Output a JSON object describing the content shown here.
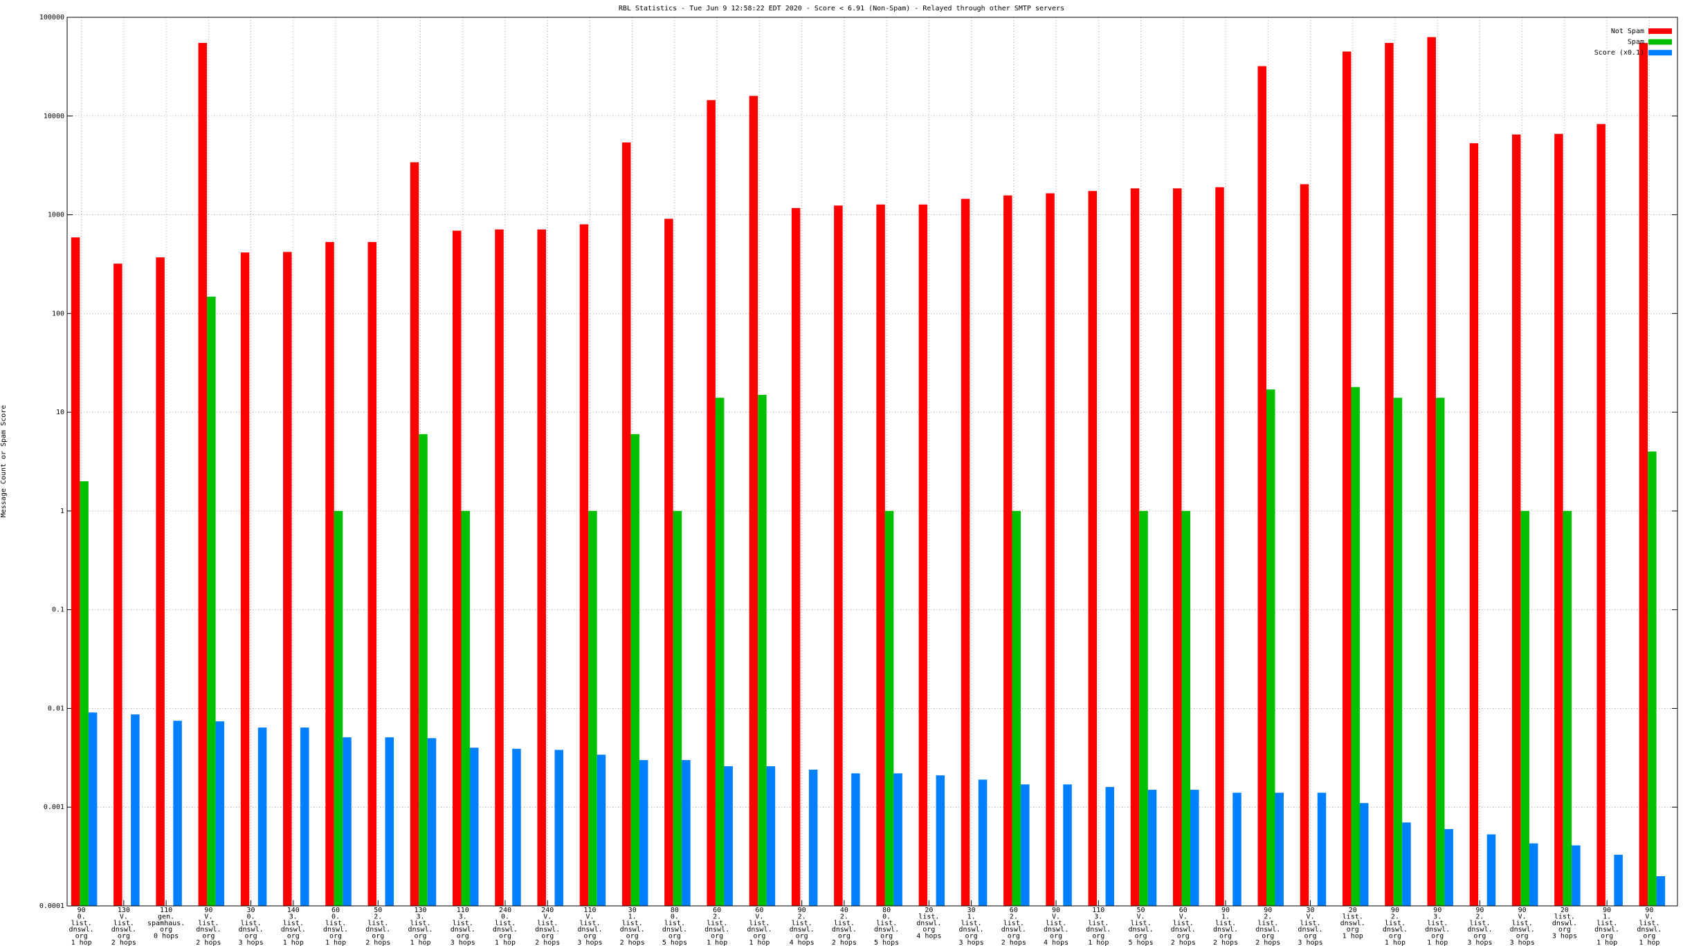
{
  "chart_data": {
    "type": "bar",
    "title": "RBL Statistics - Tue Jun  9 12:58:22 EDT 2020 - Score < 6.91 (Non-Spam) - Relayed through other SMTP servers",
    "y_label": "Message Count or Spam Score",
    "log_scale": true,
    "grid": true,
    "legend": "top-right",
    "ylim": [
      0.0001,
      100000
    ],
    "yticks": [
      0.0001,
      0.001,
      0.01,
      0.1,
      1,
      10,
      100,
      1000,
      10000,
      100000
    ],
    "categories": [
      "90\n0.\nlist.\ndnswl.\norg\n1 hop",
      "130\nV.\nlist.\ndnswl.\norg\n2 hops",
      "110\ngen.\nspamhaus.\norg\n0 hops",
      "90\nV.\nlist.\ndnswl.\norg\n2 hops",
      "30\n0.\nlist.\ndnswl.\norg\n3 hops",
      "140\n3.\nlist.\ndnswl.\norg\n1 hop",
      "60\n0.\nlist.\ndnswl.\norg\n1 hop",
      "50\n2.\nlist.\ndnswl.\norg\n2 hops",
      "130\n3.\nlist.\ndnswl.\norg\n1 hop",
      "110\n3.\nlist.\ndnswl.\norg\n3 hops",
      "240\n0.\nlist.\ndnswl.\norg\n1 hop",
      "240\nV.\nlist.\ndnswl.\norg\n2 hops",
      "110\nV.\nlist.\ndnswl.\norg\n3 hops",
      "30\n1.\nlist.\ndnswl.\norg\n2 hops",
      "80\n0.\nlist.\ndnswl.\norg\n5 hops",
      "60\n2.\nlist.\ndnswl.\norg\n1 hop",
      "60\nV.\nlist.\ndnswl.\norg\n1 hop",
      "90\n2.\nlist.\ndnswl.\norg\n4 hops",
      "40\n2.\nlist.\ndnswl.\norg\n2 hops",
      "80\n0.\nlist.\ndnswl.\norg\n5 hops",
      "20\nlist.\ndnswl.\norg\n4 hops",
      "30\n1.\nlist.\ndnswl.\norg\n3 hops",
      "60\n2.\nlist.\ndnswl.\norg\n2 hops",
      "90\nV.\nlist.\ndnswl.\norg\n4 hops",
      "110\n3.\nlist.\ndnswl.\norg\n1 hop",
      "50\nV.\nlist.\ndnswl.\norg\n5 hops",
      "60\nV.\nlist.\ndnswl.\norg\n2 hops",
      "90\n1.\nlist.\ndnswl.\norg\n2 hops",
      "90\n2.\nlist.\ndnswl.\norg\n2 hops",
      "30\nV.\nlist.\ndnswl.\norg\n3 hops",
      "20\nlist.\ndnswl.\norg\n1 hop",
      "90\n2.\nlist.\ndnswl.\norg\n1 hop",
      "90\n3.\nlist.\ndnswl.\norg\n1 hop",
      "90\n2.\nlist.\ndnswl.\norg\n3 hops",
      "90\nV.\nlist.\ndnswl.\norg\n3 hops",
      "20\nlist.\ndnswl.\norg\n3 hops",
      "90\n1.\nlist.\ndnswl.\norg\n1 hop",
      "90\nV.\nlist.\ndnswl.\norg\n1 hop"
    ],
    "series": [
      {
        "name": "Not Spam",
        "color": "#ff0000",
        "values": [
          590,
          320,
          370,
          55000,
          415,
          420,
          530,
          530,
          3400,
          690,
          710,
          710,
          800,
          5400,
          910,
          14500,
          16000,
          1170,
          1240,
          1270,
          1270,
          1450,
          1570,
          1650,
          1740,
          1850,
          1850,
          1900,
          32000,
          2040,
          45000,
          55000,
          63000,
          5300,
          6500,
          6600,
          8300,
          55000
        ]
      },
      {
        "name": "Spam",
        "color": "#00c000",
        "values": [
          2,
          null,
          null,
          148,
          null,
          null,
          1,
          null,
          6,
          1,
          null,
          null,
          1,
          6,
          1,
          14,
          15,
          null,
          null,
          1,
          null,
          null,
          1,
          null,
          null,
          1,
          1,
          null,
          17,
          null,
          18,
          14,
          14,
          null,
          1,
          1,
          null,
          4
        ]
      },
      {
        "name": "Score (x0.1)",
        "color": "#0080ff",
        "values": [
          0.0091,
          0.0087,
          0.0075,
          0.0074,
          0.0064,
          0.0064,
          0.0051,
          0.0051,
          0.005,
          0.004,
          0.0039,
          0.0038,
          0.0034,
          0.003,
          0.003,
          0.0026,
          0.0026,
          0.0024,
          0.0022,
          0.0022,
          0.0021,
          0.0019,
          0.0017,
          0.0017,
          0.0016,
          0.0015,
          0.0015,
          0.0014,
          0.0014,
          0.0014,
          0.0011,
          0.0007,
          0.0006,
          0.00053,
          0.00043,
          0.00041,
          0.00033,
          0.0002
        ]
      }
    ]
  }
}
